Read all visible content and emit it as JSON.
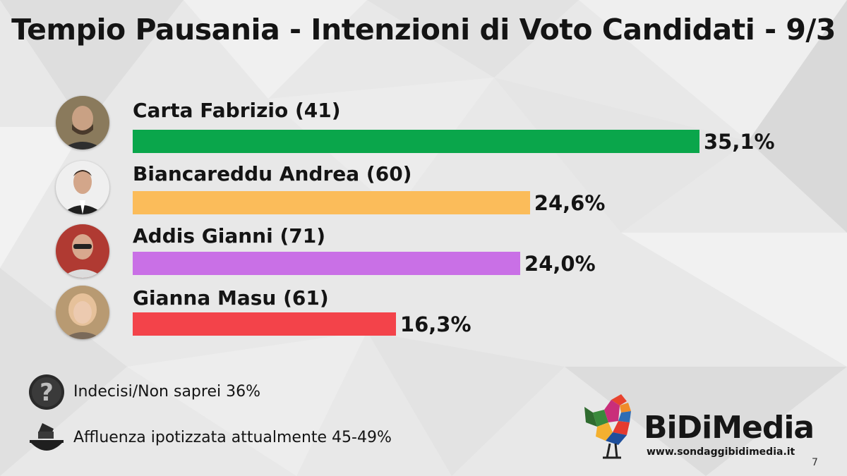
{
  "title": "Tempio Pausania - Intenzioni di Voto Candidati - 9/3",
  "chart_data": {
    "type": "bar",
    "orientation": "horizontal",
    "categories": [
      "Carta Fabrizio (41)",
      "Biancareddu Andrea (60)",
      "Addis Gianni (71)",
      "Gianna Masu (61)"
    ],
    "values": [
      35.1,
      24.6,
      24.0,
      16.3
    ],
    "value_labels": [
      "35,1%",
      "24,6%",
      "24,0%",
      "16,3%"
    ],
    "colors": [
      "#0aa64b",
      "#fbbc5a",
      "#c970e6",
      "#f3434a"
    ]
  },
  "footer": {
    "undecided": "Indecisi/Non saprei 36%",
    "turnout": "Affluenza ipotizzata attualmente 45-49%"
  },
  "brand": {
    "name": "BiDiMedia",
    "site": "www.sondaggibidimedia.it"
  },
  "page_number": "7"
}
